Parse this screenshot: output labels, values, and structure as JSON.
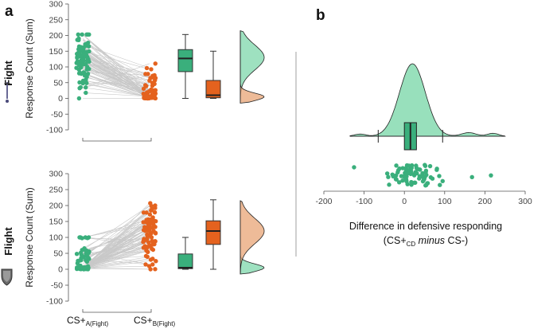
{
  "colors": {
    "green": "#3aaf7c",
    "orange": "#e4621e",
    "green_fill": "#86dab0",
    "orange_fill": "#e8a475",
    "line": "#c8c8c8",
    "axis": "#555555"
  },
  "chart_data": [
    {
      "type": "scatter",
      "panel_label": "a",
      "condition": "Fight",
      "ylabel": "Response Count (Sum)",
      "ylim": [
        -100,
        300
      ],
      "yticks": [
        -100,
        -50,
        0,
        50,
        100,
        150,
        200,
        250,
        300
      ],
      "groups": [
        {
          "name": "CS+A(Fight)",
          "label_main": "CS+",
          "label_sub": "A(Fight)",
          "box": {
            "min": 0,
            "q1": 85,
            "median": 127,
            "q3": 155,
            "max": 203
          }
        },
        {
          "name": "CS+B(Fight)",
          "label_main": "CS+",
          "label_sub": "B(Fight)",
          "box": {
            "min": 0,
            "q1": 2,
            "median": 10,
            "q3": 57,
            "max": 150
          }
        }
      ],
      "density_modes": {
        "group_a": 130,
        "group_b": 5
      }
    },
    {
      "type": "scatter",
      "condition": "Flight",
      "ylabel": "Response Count (Sum)",
      "ylim": [
        -100,
        300
      ],
      "yticks": [
        -100,
        -50,
        0,
        50,
        100,
        150,
        200,
        250,
        300
      ],
      "groups": [
        {
          "name": "CS+A(Fight)",
          "label_main": "CS+",
          "label_sub": "A(Fight)",
          "box": {
            "min": 0,
            "q1": 2,
            "median": 5,
            "q3": 48,
            "max": 100
          }
        },
        {
          "name": "CS+B(Fight)",
          "label_main": "CS+",
          "label_sub": "B(Fight)",
          "box": {
            "min": 0,
            "q1": 78,
            "median": 120,
            "q3": 152,
            "max": 218
          }
        }
      ],
      "density_modes": {
        "group_a": 5,
        "group_b": 120
      }
    },
    {
      "type": "scatter",
      "panel_label": "b",
      "xlabel_line1": "Difference in defensive responding",
      "xlabel_line2_a": "(CS+",
      "xlabel_line2_sub": "CD",
      "xlabel_line2_italic": "minus",
      "xlabel_line2_b": "CS-)",
      "xlim": [
        -200,
        300
      ],
      "xticks": [
        -200,
        -100,
        0,
        100,
        200,
        300
      ],
      "box": {
        "min": -65,
        "q1": 0,
        "median": 15,
        "q3": 30,
        "max": 95
      },
      "density_mode": 20
    }
  ]
}
